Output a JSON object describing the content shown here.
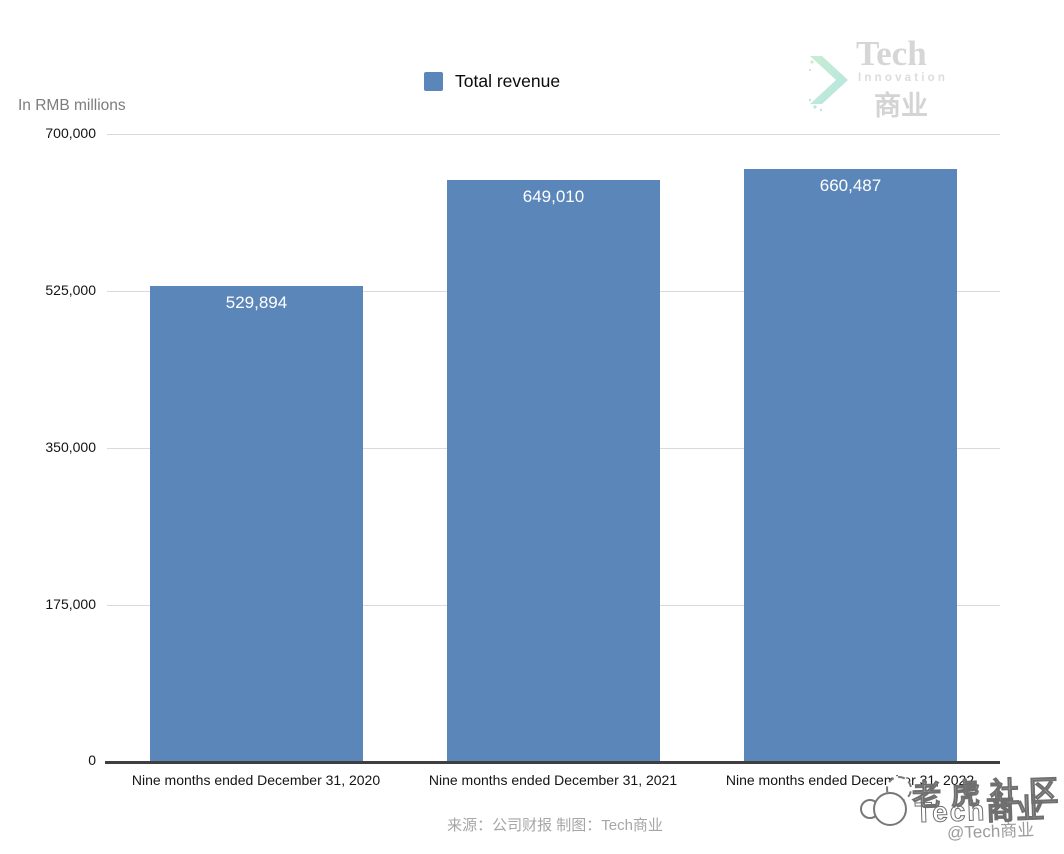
{
  "header": {
    "units_label": "In RMB millions",
    "legend": {
      "label": "Total revenue",
      "swatch_color": "#5b86b9"
    },
    "logo": {
      "line1": "Tech",
      "line2": "Innovation",
      "line3": "商业"
    }
  },
  "chart_data": {
    "type": "bar",
    "title": "Total revenue",
    "ylabel": "In RMB millions",
    "categories": [
      "Nine months ended December 31, 2020",
      "Nine months ended December 31, 2021",
      "Nine months ended December 31, 2022"
    ],
    "values": [
      529894,
      649010,
      660487
    ],
    "value_labels": [
      "529,894",
      "649,010",
      "660,487"
    ],
    "ylim": [
      0,
      700000
    ],
    "yticks": [
      "700,000",
      "525,000",
      "350,000",
      "175,000",
      "0"
    ],
    "bar_color": "#5b86b9",
    "grid": true,
    "legend_position": "top-center"
  },
  "footer": {
    "caption": "来源：公司财报 制图：Tech商业",
    "watermark_community": "老虎社区",
    "watermark_brand": "Tech商业",
    "watermark_handle": "@Tech商业"
  }
}
